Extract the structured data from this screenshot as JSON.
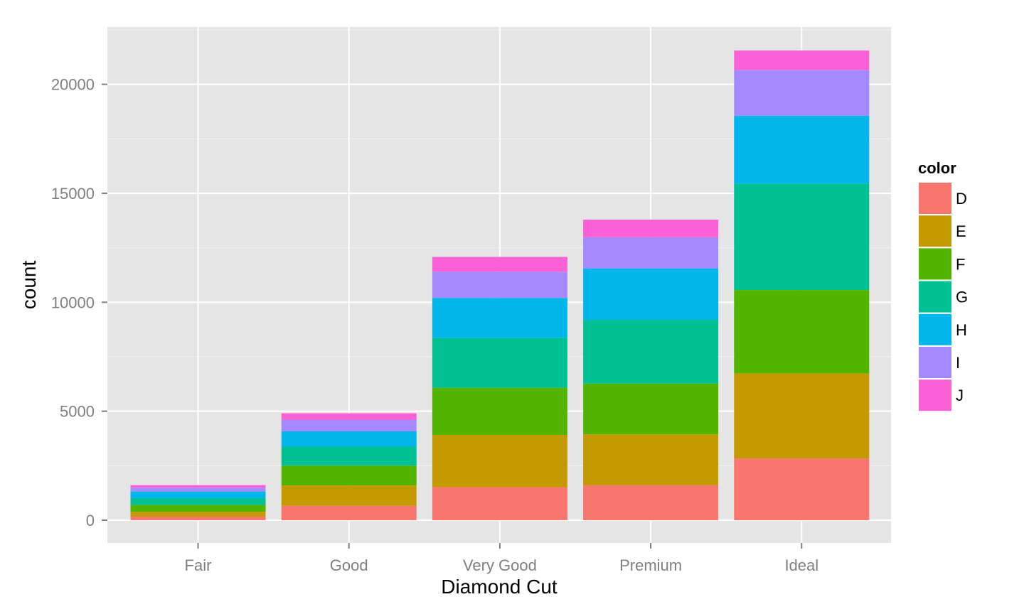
{
  "chart_data": {
    "type": "bar",
    "stacked": true,
    "title": "",
    "xlabel": "Diamond Cut",
    "ylabel": "count",
    "categories": [
      "Fair",
      "Good",
      "Very Good",
      "Premium",
      "Ideal"
    ],
    "ylim": [
      -1000,
      22500
    ],
    "yticks": [
      0,
      5000,
      10000,
      15000,
      20000
    ],
    "ytick_labels": [
      "0",
      "5000",
      "10000",
      "15000",
      "20000"
    ],
    "grid": true,
    "legend": {
      "title": "color",
      "position": "right"
    },
    "series": [
      {
        "name": "D",
        "color": "#F8766D",
        "values": [
          163,
          662,
          1513,
          1603,
          2834
        ]
      },
      {
        "name": "E",
        "color": "#C49A00",
        "values": [
          224,
          933,
          2400,
          2337,
          3903
        ]
      },
      {
        "name": "F",
        "color": "#53B400",
        "values": [
          312,
          909,
          2164,
          2331,
          3826
        ]
      },
      {
        "name": "G",
        "color": "#00C094",
        "values": [
          314,
          871,
          2299,
          2924,
          4884
        ]
      },
      {
        "name": "H",
        "color": "#00B6EB",
        "values": [
          303,
          702,
          1824,
          2360,
          3115
        ]
      },
      {
        "name": "I",
        "color": "#A58AFF",
        "values": [
          175,
          522,
          1204,
          1428,
          2093
        ]
      },
      {
        "name": "J",
        "color": "#FB61D7",
        "values": [
          119,
          307,
          678,
          808,
          896
        ]
      }
    ]
  }
}
